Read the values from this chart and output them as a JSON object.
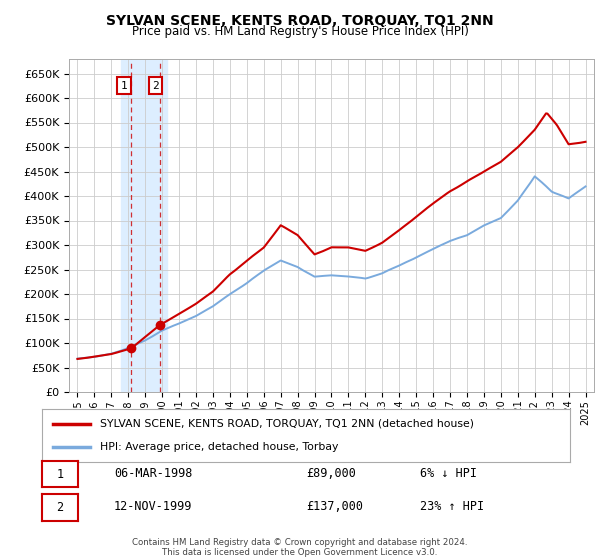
{
  "title": "SYLVAN SCENE, KENTS ROAD, TORQUAY, TQ1 2NN",
  "subtitle": "Price paid vs. HM Land Registry's House Price Index (HPI)",
  "legend_line1": "SYLVAN SCENE, KENTS ROAD, TORQUAY, TQ1 2NN (detached house)",
  "legend_line2": "HPI: Average price, detached house, Torbay",
  "transaction1_date": "06-MAR-1998",
  "transaction1_price": "£89,000",
  "transaction1_hpi": "6% ↓ HPI",
  "transaction1_year": 1998.18,
  "transaction1_value": 89000,
  "transaction2_date": "12-NOV-1999",
  "transaction2_price": "£137,000",
  "transaction2_hpi": "23% ↑ HPI",
  "transaction2_year": 1999.87,
  "transaction2_value": 137000,
  "footer": "Contains HM Land Registry data © Crown copyright and database right 2024.\nThis data is licensed under the Open Government Licence v3.0.",
  "hpi_color": "#7aaadd",
  "price_color": "#cc0000",
  "highlight_color": "#ddeeff",
  "grid_color": "#cccccc",
  "ylim": [
    0,
    680000
  ],
  "yticks": [
    0,
    50000,
    100000,
    150000,
    200000,
    250000,
    300000,
    350000,
    400000,
    450000,
    500000,
    550000,
    600000,
    650000
  ],
  "xmin": 1994.5,
  "xmax": 2025.5,
  "hpi_anchors_x": [
    1995,
    1996,
    1997,
    1998,
    1999,
    2000,
    2001,
    2002,
    2003,
    2004,
    2005,
    2006,
    2007,
    2008,
    2009,
    2010,
    2011,
    2012,
    2013,
    2014,
    2015,
    2016,
    2017,
    2018,
    2019,
    2020,
    2021,
    2022,
    2023,
    2024,
    2025
  ],
  "hpi_anchors_y": [
    68000,
    72000,
    78000,
    90000,
    105000,
    125000,
    140000,
    155000,
    175000,
    200000,
    222000,
    248000,
    268000,
    255000,
    235000,
    238000,
    235000,
    232000,
    242000,
    258000,
    275000,
    292000,
    308000,
    320000,
    340000,
    355000,
    390000,
    440000,
    410000,
    395000,
    420000
  ],
  "price_anchors_x": [
    1995,
    1996,
    1997,
    1998.18,
    1999.87,
    2001,
    2002,
    2003,
    2004,
    2005,
    2006,
    2007,
    2008,
    2009,
    2010,
    2011,
    2012,
    2013,
    2014,
    2015,
    2016,
    2017,
    2018,
    2019,
    2020,
    2021,
    2022,
    2022.7,
    2023.3,
    2024,
    2025
  ],
  "price_anchors_y": [
    68000,
    72000,
    78000,
    89000,
    137000,
    160000,
    180000,
    205000,
    240000,
    268000,
    295000,
    340000,
    320000,
    280000,
    295000,
    295000,
    288000,
    305000,
    330000,
    358000,
    385000,
    410000,
    430000,
    450000,
    470000,
    500000,
    535000,
    570000,
    545000,
    505000,
    510000
  ]
}
